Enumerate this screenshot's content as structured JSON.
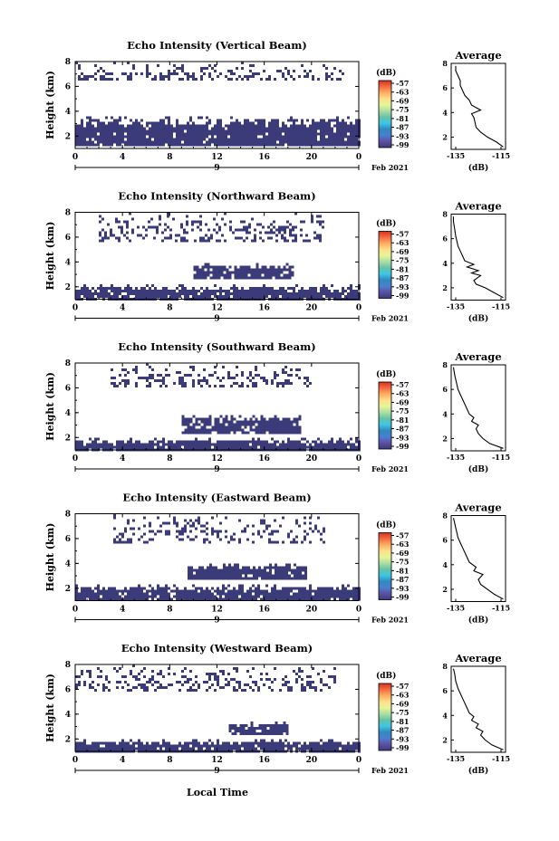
{
  "figure": {
    "x_axis_label": "Local Time",
    "date_label": "Feb 2021",
    "day_label": "9"
  },
  "colorbar": {
    "unit": "(dB)",
    "labels": [
      "-57",
      "-63",
      "-69",
      "-75",
      "-81",
      "-87",
      "-93",
      "-99"
    ],
    "colors": [
      "#d7301f",
      "#f46d43",
      "#fdae61",
      "#fee08b",
      "#e6f598",
      "#abdda4",
      "#66c2a5",
      "#3ec6e6",
      "#3288bd",
      "#4a7fd0",
      "#5e4fa2",
      "#3b3b7a"
    ],
    "fill_color": "#3b3b7a"
  },
  "chart_data": [
    {
      "type": "heatmap",
      "title": "Echo Intensity (Vertical Beam)",
      "ylabel": "Height (km)",
      "x_ticks": [
        "0",
        "4",
        "8",
        "12",
        "16",
        "20",
        "0"
      ],
      "y_ticks": [
        "2",
        "4",
        "6",
        "8"
      ],
      "xlim": [
        0,
        24
      ],
      "ylim": [
        1,
        8
      ],
      "lower_layer": {
        "bottom_km": 1.3,
        "top_km": 3.6,
        "x_start_h": 0,
        "x_end_h": 24
      },
      "upper_layer": {
        "bottom_km": 6.6,
        "top_km": 8.0,
        "x_start_h": 0,
        "x_end_h": 23
      },
      "average_profile": {
        "title": "Average",
        "xlabel": "(dB)",
        "x_ticks": [
          "-135",
          "-115"
        ],
        "y_ticks": [
          "2",
          "4",
          "6",
          "8"
        ],
        "xlim": [
          -137,
          -113
        ],
        "ylim": [
          1,
          8
        ],
        "points": [
          [
            -114,
            1.2
          ],
          [
            -117,
            1.6
          ],
          [
            -121,
            2.0
          ],
          [
            -124,
            2.4
          ],
          [
            -126,
            2.8
          ],
          [
            -126.5,
            3.2
          ],
          [
            -127,
            3.6
          ],
          [
            -128,
            3.9
          ],
          [
            -124,
            4.2
          ],
          [
            -126,
            4.4
          ],
          [
            -128,
            4.6
          ],
          [
            -129,
            5.0
          ],
          [
            -131,
            5.4
          ],
          [
            -132,
            5.8
          ],
          [
            -133,
            6.2
          ],
          [
            -133,
            6.6
          ],
          [
            -134,
            7.0
          ],
          [
            -135,
            7.4
          ],
          [
            -135,
            7.8
          ]
        ]
      }
    },
    {
      "type": "heatmap",
      "title": "Echo Intensity (Northward Beam)",
      "ylabel": "Height (km)",
      "x_ticks": [
        "0",
        "4",
        "8",
        "12",
        "16",
        "20",
        "0"
      ],
      "y_ticks": [
        "2",
        "4",
        "6",
        "8"
      ],
      "xlim": [
        0,
        24
      ],
      "ylim": [
        1,
        8
      ],
      "lower_layer": {
        "bottom_km": 1.1,
        "top_km": 2.2,
        "x_start_h": 0,
        "x_end_h": 24
      },
      "mid_layer": {
        "bottom_km": 2.6,
        "top_km": 3.9,
        "x_start_h": 10,
        "x_end_h": 18.5
      },
      "upper_layer": {
        "bottom_km": 5.8,
        "top_km": 8.0,
        "x_start_h": 2,
        "x_end_h": 21
      },
      "average_profile": {
        "title": "Average",
        "xlabel": "(dB)",
        "x_ticks": [
          "-135",
          "-115"
        ],
        "y_ticks": [
          "2",
          "4",
          "6",
          "8"
        ],
        "xlim": [
          -137,
          -113
        ],
        "ylim": [
          1,
          8
        ],
        "points": [
          [
            -114,
            1.2
          ],
          [
            -118,
            1.6
          ],
          [
            -122,
            2.0
          ],
          [
            -126,
            2.3
          ],
          [
            -127,
            2.6
          ],
          [
            -124,
            3.0
          ],
          [
            -128,
            3.2
          ],
          [
            -125,
            3.4
          ],
          [
            -130,
            3.7
          ],
          [
            -127,
            3.9
          ],
          [
            -131,
            4.2
          ],
          [
            -132,
            4.6
          ],
          [
            -133,
            5.0
          ],
          [
            -134,
            5.4
          ],
          [
            -134.5,
            5.8
          ],
          [
            -135,
            6.2
          ],
          [
            -135.5,
            6.8
          ],
          [
            -136,
            7.4
          ],
          [
            -136,
            7.8
          ]
        ]
      }
    },
    {
      "type": "heatmap",
      "title": "Echo Intensity (Southward Beam)",
      "ylabel": "Height (km)",
      "x_ticks": [
        "0",
        "4",
        "8",
        "12",
        "16",
        "20",
        "0"
      ],
      "y_ticks": [
        "2",
        "4",
        "6",
        "8"
      ],
      "xlim": [
        0,
        24
      ],
      "ylim": [
        1,
        8
      ],
      "lower_layer": {
        "bottom_km": 1.1,
        "top_km": 2.0,
        "x_start_h": 0,
        "x_end_h": 24
      },
      "mid_layer": {
        "bottom_km": 2.4,
        "top_km": 3.8,
        "x_start_h": 9,
        "x_end_h": 19
      },
      "upper_layer": {
        "bottom_km": 6.2,
        "top_km": 8.0,
        "x_start_h": 3,
        "x_end_h": 20
      },
      "average_profile": {
        "title": "Average",
        "xlabel": "(dB)",
        "x_ticks": [
          "-135",
          "-115"
        ],
        "y_ticks": [
          "2",
          "4",
          "6",
          "8"
        ],
        "xlim": [
          -137,
          -113
        ],
        "ylim": [
          1,
          8
        ],
        "points": [
          [
            -114,
            1.2
          ],
          [
            -120,
            1.6
          ],
          [
            -123,
            2.0
          ],
          [
            -125,
            2.4
          ],
          [
            -126,
            2.8
          ],
          [
            -125,
            3.1
          ],
          [
            -128,
            3.4
          ],
          [
            -127,
            3.7
          ],
          [
            -129,
            4.0
          ],
          [
            -130,
            4.4
          ],
          [
            -131,
            4.8
          ],
          [
            -132,
            5.2
          ],
          [
            -133,
            5.6
          ],
          [
            -134,
            6.0
          ],
          [
            -134.5,
            6.4
          ],
          [
            -135,
            6.8
          ],
          [
            -135.5,
            7.2
          ],
          [
            -136,
            7.8
          ]
        ]
      }
    },
    {
      "type": "heatmap",
      "title": "Echo Intensity (Eastward Beam)",
      "ylabel": "Height (km)",
      "x_ticks": [
        "0",
        "4",
        "8",
        "12",
        "16",
        "20",
        "0"
      ],
      "y_ticks": [
        "2",
        "4",
        "6",
        "8"
      ],
      "xlim": [
        0,
        24
      ],
      "ylim": [
        1,
        8
      ],
      "lower_layer": {
        "bottom_km": 1.1,
        "top_km": 2.3,
        "x_start_h": 0,
        "x_end_h": 24
      },
      "mid_layer": {
        "bottom_km": 2.8,
        "top_km": 4.0,
        "x_start_h": 9.5,
        "x_end_h": 19.5
      },
      "upper_layer": {
        "bottom_km": 5.8,
        "top_km": 8.0,
        "x_start_h": 3,
        "x_end_h": 21
      },
      "average_profile": {
        "title": "Average",
        "xlabel": "(dB)",
        "x_ticks": [
          "-135",
          "-115"
        ],
        "y_ticks": [
          "2",
          "4",
          "6",
          "8"
        ],
        "xlim": [
          -137,
          -113
        ],
        "ylim": [
          1,
          8
        ],
        "points": [
          [
            -114,
            1.2
          ],
          [
            -118,
            1.6
          ],
          [
            -121,
            2.0
          ],
          [
            -124,
            2.4
          ],
          [
            -125,
            2.8
          ],
          [
            -123,
            3.2
          ],
          [
            -127,
            3.5
          ],
          [
            -126,
            3.8
          ],
          [
            -129,
            4.2
          ],
          [
            -130,
            4.6
          ],
          [
            -131,
            5.0
          ],
          [
            -132,
            5.4
          ],
          [
            -133,
            5.8
          ],
          [
            -134,
            6.2
          ],
          [
            -134.5,
            6.6
          ],
          [
            -135,
            7.0
          ],
          [
            -135.5,
            7.4
          ],
          [
            -136,
            7.8
          ]
        ]
      }
    },
    {
      "type": "heatmap",
      "title": "Echo Intensity (Westward Beam)",
      "ylabel": "Height (km)",
      "x_ticks": [
        "0",
        "4",
        "8",
        "12",
        "16",
        "20",
        "0"
      ],
      "y_ticks": [
        "2",
        "4",
        "6",
        "8"
      ],
      "xlim": [
        0,
        24
      ],
      "ylim": [
        1,
        8
      ],
      "lower_layer": {
        "bottom_km": 1.1,
        "top_km": 2.0,
        "x_start_h": 0,
        "x_end_h": 24
      },
      "mid_layer": {
        "bottom_km": 2.4,
        "top_km": 3.4,
        "x_start_h": 13,
        "x_end_h": 18
      },
      "upper_layer": {
        "bottom_km": 6.0,
        "top_km": 8.0,
        "x_start_h": 0,
        "x_end_h": 22
      },
      "average_profile": {
        "title": "Average",
        "xlabel": "(dB)",
        "x_ticks": [
          "-135",
          "-115"
        ],
        "y_ticks": [
          "2",
          "4",
          "6",
          "8"
        ],
        "xlim": [
          -137,
          -113
        ],
        "ylim": [
          1,
          8
        ],
        "points": [
          [
            -114,
            1.2
          ],
          [
            -119,
            1.6
          ],
          [
            -122,
            2.0
          ],
          [
            -124,
            2.4
          ],
          [
            -123,
            2.7
          ],
          [
            -126,
            3.0
          ],
          [
            -125,
            3.3
          ],
          [
            -128,
            3.6
          ],
          [
            -127,
            3.9
          ],
          [
            -129,
            4.2
          ],
          [
            -130,
            4.6
          ],
          [
            -131,
            5.0
          ],
          [
            -132,
            5.4
          ],
          [
            -133,
            5.8
          ],
          [
            -134,
            6.2
          ],
          [
            -135,
            6.8
          ],
          [
            -135.5,
            7.4
          ],
          [
            -136,
            7.8
          ]
        ]
      }
    }
  ]
}
